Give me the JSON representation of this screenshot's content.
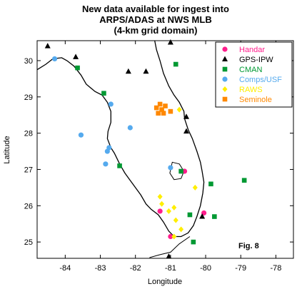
{
  "title_lines": [
    "New data available for ingest into",
    "ARPS/ADAS at NWS MLB",
    "(4-km grid domain)"
  ],
  "figure_label": "Fig. 8",
  "chart_data": {
    "type": "scatter",
    "xlabel": "Longitude",
    "ylabel": "Latitude",
    "xlim": [
      -84.8,
      -77.5
    ],
    "ylim": [
      24.55,
      30.55
    ],
    "xticks": [
      -84,
      -83,
      -82,
      -81,
      -80,
      -79,
      -78
    ],
    "yticks": [
      25,
      26,
      27,
      28,
      29,
      30
    ],
    "legend_position": "top-right",
    "grid": false,
    "series": [
      {
        "name": "Handar",
        "marker": "circle",
        "color": "#ff1e8c",
        "points": [
          [
            -80.6,
            26.95
          ],
          [
            -81.3,
            25.85
          ],
          [
            -80.05,
            25.8
          ],
          [
            -81.0,
            25.15
          ]
        ]
      },
      {
        "name": "GPS-IPW",
        "marker": "triangle",
        "color": "#000000",
        "points": [
          [
            -84.5,
            30.4
          ],
          [
            -83.7,
            30.1
          ],
          [
            -82.2,
            29.7
          ],
          [
            -81.7,
            29.7
          ],
          [
            -80.55,
            28.45
          ],
          [
            -80.55,
            28.05
          ],
          [
            -81.0,
            30.5
          ],
          [
            -80.1,
            25.7
          ],
          [
            -81.05,
            24.6
          ]
        ]
      },
      {
        "name": "CMAN",
        "marker": "square",
        "color": "#009933",
        "points": [
          [
            -83.65,
            29.8
          ],
          [
            -82.9,
            29.1
          ],
          [
            -82.45,
            27.1
          ],
          [
            -80.85,
            29.9
          ],
          [
            -80.7,
            26.95
          ],
          [
            -79.85,
            26.6
          ],
          [
            -78.9,
            26.7
          ],
          [
            -79.75,
            25.7
          ],
          [
            -80.35,
            25.0
          ],
          [
            -80.45,
            25.75
          ]
        ]
      },
      {
        "name": "Comps/USF",
        "marker": "circle",
        "color": "#55aaee",
        "points": [
          [
            -84.3,
            30.05
          ],
          [
            -82.7,
            28.8
          ],
          [
            -83.55,
            27.95
          ],
          [
            -82.15,
            28.15
          ],
          [
            -82.75,
            27.6
          ],
          [
            -82.8,
            27.5
          ],
          [
            -82.85,
            27.15
          ],
          [
            -81.0,
            27.05
          ]
        ]
      },
      {
        "name": "RAWS",
        "marker": "diamond",
        "color": "#ffee00",
        "points": [
          [
            -80.75,
            28.65
          ],
          [
            -81.3,
            26.25
          ],
          [
            -81.25,
            26.05
          ],
          [
            -81.05,
            25.85
          ],
          [
            -80.9,
            25.95
          ],
          [
            -80.85,
            25.6
          ],
          [
            -80.7,
            25.35
          ],
          [
            -80.3,
            26.5
          ],
          [
            -80.9,
            25.15
          ]
        ]
      },
      {
        "name": "Seminole",
        "marker": "square",
        "color": "#ff8800",
        "points": [
          [
            -81.4,
            28.7
          ],
          [
            -81.3,
            28.8
          ],
          [
            -81.25,
            28.65
          ],
          [
            -81.15,
            28.75
          ],
          [
            -81.35,
            28.55
          ],
          [
            -81.2,
            28.55
          ],
          [
            -81.0,
            28.6
          ]
        ]
      }
    ]
  }
}
